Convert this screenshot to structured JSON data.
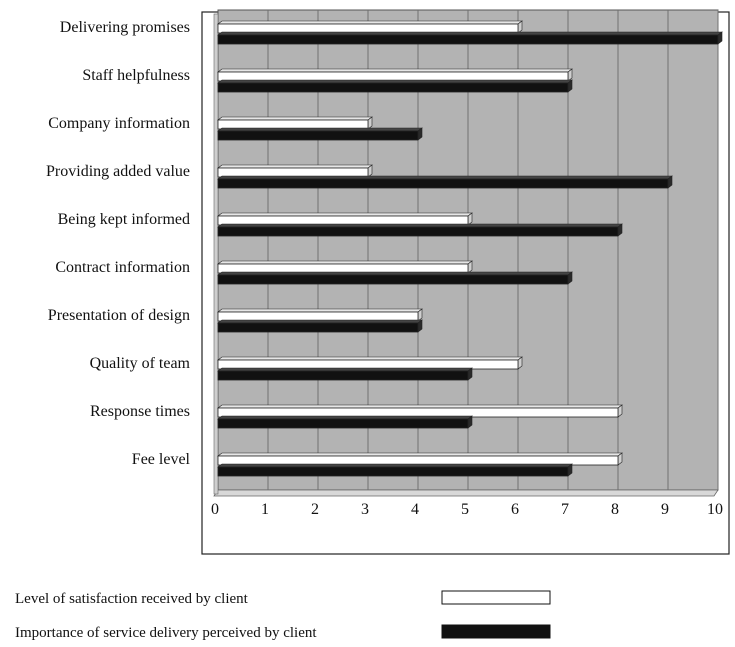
{
  "chart_data": {
    "type": "bar",
    "orientation": "horizontal",
    "title": "",
    "xlabel": "",
    "ylabel": "",
    "categories": [
      "Delivering promises",
      "Staff helpfulness",
      "Company information",
      "Providing added value",
      "Being kept informed",
      "Contract information",
      "Presentation of design",
      "Quality of team",
      "Response times",
      "Fee level"
    ],
    "series": [
      {
        "name": "Level of satisfaction received by client",
        "color": "#ffffff",
        "values": [
          6,
          7,
          3,
          3,
          5,
          5,
          4,
          6,
          8,
          8
        ]
      },
      {
        "name": "Importance of service delivery perceived by client",
        "color": "#111111",
        "values": [
          10,
          7,
          4,
          9,
          8,
          7,
          4,
          5,
          5,
          7
        ]
      }
    ],
    "xlim": [
      0,
      10
    ],
    "xticks": [
      0,
      1,
      2,
      3,
      4,
      5,
      6,
      7,
      8,
      9,
      10
    ],
    "grid": "vertical",
    "plot_background": "#b3b3b3",
    "legend_position": "bottom"
  }
}
